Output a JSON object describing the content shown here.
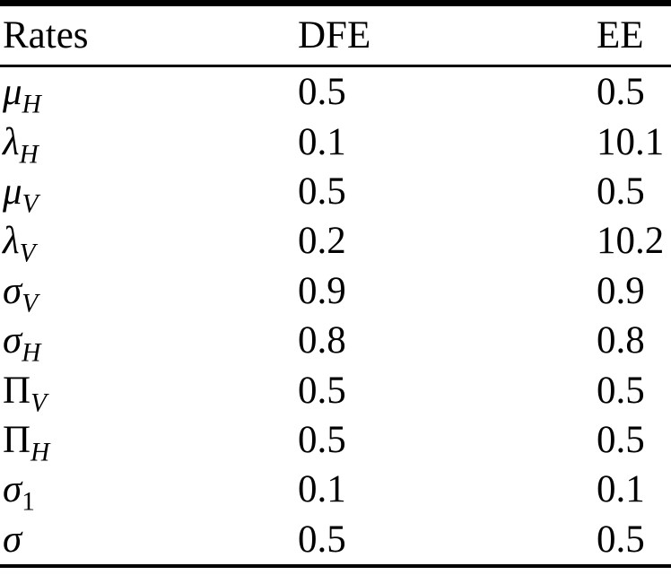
{
  "page": {
    "background_color": "#ffffff",
    "text_color": "#000000"
  },
  "table": {
    "columns": [
      "Rates",
      "DFE",
      "EE"
    ],
    "rows": [
      {
        "symbol": "μ",
        "subscript": "H",
        "dfe": "0.5",
        "ee": "0.5"
      },
      {
        "symbol": "λ",
        "subscript": "H",
        "dfe": "0.1",
        "ee": "10.1"
      },
      {
        "symbol": "μ",
        "subscript": "V",
        "dfe": "0.5",
        "ee": "0.5"
      },
      {
        "symbol": "λ",
        "subscript": "V",
        "dfe": "0.2",
        "ee": "10.2"
      },
      {
        "symbol": "σ",
        "subscript": "V",
        "dfe": "0.9",
        "ee": "0.9"
      },
      {
        "symbol": "σ",
        "subscript": "H",
        "dfe": "0.8",
        "ee": "0.8"
      },
      {
        "symbol": "Π",
        "subscript": "V",
        "dfe": "0.5",
        "ee": "0.5"
      },
      {
        "symbol": "Π",
        "subscript": "H",
        "dfe": "0.5",
        "ee": "0.5"
      },
      {
        "symbol": "σ",
        "subscript": "1",
        "dfe": "0.1",
        "ee": "0.1"
      },
      {
        "symbol": "σ",
        "subscript": "",
        "dfe": "0.5",
        "ee": "0.5"
      }
    ]
  }
}
